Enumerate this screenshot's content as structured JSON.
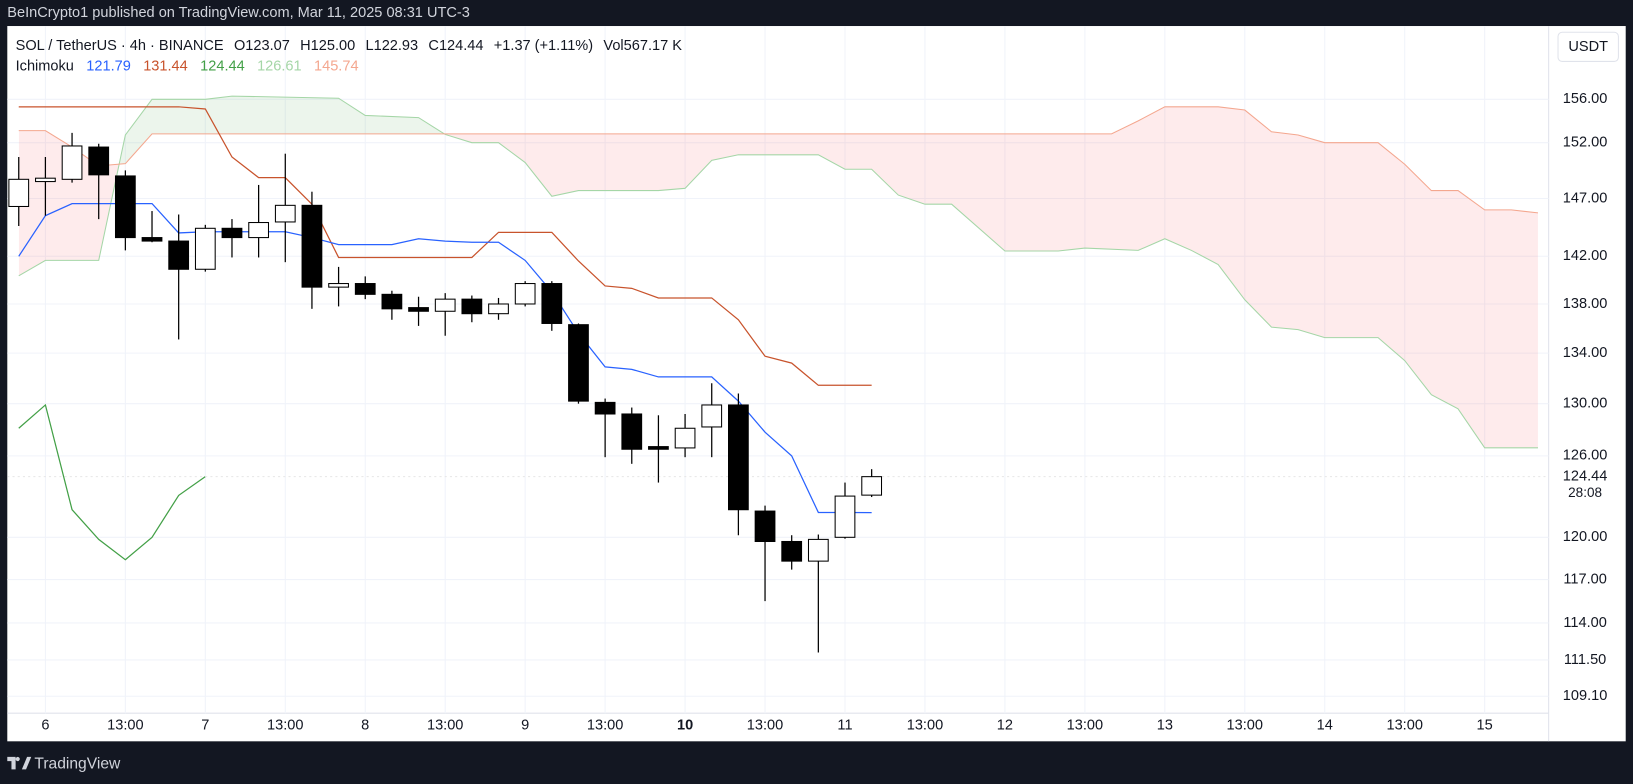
{
  "header": {
    "publisher": "BeInCrypto1 published on TradingView.com, Mar 11, 2025 08:31 UTC-3"
  },
  "footer": {
    "brand": "TradingView"
  },
  "chart_data": {
    "type": "candlestick",
    "symbol": "SOL / TetherUS · 4h · BINANCE",
    "legend": [
      "O123.07",
      "H125.00",
      "L122.93",
      "C124.44",
      "+1.37 (+1.11%)",
      "Vol567.17 K"
    ],
    "currency": "USDT",
    "countdown": "28:08",
    "log_scale": true,
    "grid": true,
    "up_color": "#ffffff",
    "down_color": "#000000",
    "xlim": [
      -0.43,
      57.4
    ],
    "xticks": [
      {
        "value": 1,
        "label": "6"
      },
      {
        "value": 4,
        "label": "13:00"
      },
      {
        "value": 7,
        "label": "7"
      },
      {
        "value": 10,
        "label": "13:00"
      },
      {
        "value": 13,
        "label": "8"
      },
      {
        "value": 16,
        "label": "13:00"
      },
      {
        "value": 19,
        "label": "9"
      },
      {
        "value": 22,
        "label": "13:00"
      },
      {
        "value": 25,
        "label": "10",
        "bold": true
      },
      {
        "value": 28,
        "label": "13:00"
      },
      {
        "value": 31,
        "label": "11"
      },
      {
        "value": 34,
        "label": "13:00"
      },
      {
        "value": 37,
        "label": "12"
      },
      {
        "value": 40,
        "label": "13:00"
      },
      {
        "value": 43,
        "label": "13"
      },
      {
        "value": 46,
        "label": "13:00"
      },
      {
        "value": 49,
        "label": "14"
      },
      {
        "value": 52,
        "label": "13:00"
      },
      {
        "value": 55,
        "label": "15"
      }
    ],
    "ylim": [
      108,
      163
    ],
    "yticks": [
      {
        "value": 156,
        "label": "156.00"
      },
      {
        "value": 152,
        "label": "152.00"
      },
      {
        "value": 147,
        "label": "147.00"
      },
      {
        "value": 142,
        "label": "142.00"
      },
      {
        "value": 138,
        "label": "138.00"
      },
      {
        "value": 134,
        "label": "134.00"
      },
      {
        "value": 130,
        "label": "130.00"
      },
      {
        "value": 126,
        "label": "126.00"
      },
      {
        "value": 120,
        "label": "120.00"
      },
      {
        "value": 117,
        "label": "117.00"
      },
      {
        "value": 114,
        "label": "114.00"
      },
      {
        "value": 111.5,
        "label": "111.50"
      },
      {
        "value": 109.1,
        "label": "109.10"
      }
    ],
    "candles": {
      "open": [
        146.3,
        148.5,
        148.7,
        151.6,
        149.0,
        143.6,
        143.3,
        140.9,
        144.4,
        143.6,
        144.95,
        146.4,
        139.4,
        139.7,
        138.8,
        137.7,
        137.4,
        138.4,
        137.2,
        138.0,
        139.7,
        136.3,
        130.1,
        129.2,
        126.7,
        126.6,
        128.2,
        129.9,
        121.9,
        119.7,
        118.3,
        120.0,
        123.07
      ],
      "high": [
        150.7,
        150.7,
        152.9,
        151.9,
        149.5,
        145.9,
        145.6,
        144.7,
        145.2,
        148.2,
        151.0,
        147.6,
        141.1,
        140.3,
        139.1,
        138.6,
        138.9,
        138.7,
        138.5,
        139.9,
        139.9,
        136.4,
        130.4,
        129.7,
        129.1,
        129.2,
        131.6,
        130.8,
        122.3,
        120.15,
        120.2,
        124.0,
        125.0
      ],
      "low": [
        144.6,
        145.5,
        148.4,
        145.2,
        142.5,
        143.2,
        135.1,
        140.7,
        141.9,
        141.9,
        141.5,
        137.6,
        137.8,
        138.4,
        136.7,
        136.2,
        135.4,
        136.5,
        136.7,
        137.8,
        135.8,
        130.0,
        125.9,
        125.4,
        124.0,
        125.9,
        125.9,
        120.15,
        115.5,
        117.7,
        112.0,
        119.9,
        122.93
      ],
      "close": [
        148.7,
        148.8,
        151.7,
        149.1,
        143.6,
        143.3,
        140.9,
        144.4,
        143.6,
        144.9,
        146.4,
        139.4,
        139.7,
        138.8,
        137.6,
        137.4,
        138.4,
        137.2,
        138.0,
        139.7,
        136.4,
        130.2,
        129.2,
        126.5,
        126.5,
        128.1,
        129.9,
        122.0,
        119.7,
        118.3,
        119.85,
        123.0,
        124.44
      ]
    },
    "ichimoku": {
      "name": "Ichimoku",
      "conversion": {
        "color": "#2962ff",
        "values": [
          142.0,
          145.5,
          146.55,
          146.55,
          146.55,
          146.55,
          144.0,
          144.1,
          144.1,
          144.1,
          144.1,
          143.6,
          143.0,
          143.0,
          143.0,
          143.5,
          143.3,
          143.2,
          143.2,
          141.65,
          139.0,
          135.6,
          132.9,
          132.7,
          132.1,
          132.1,
          132.1,
          130.2,
          127.8,
          126.0,
          121.8,
          121.8,
          121.79
        ]
      },
      "base": {
        "color": "#c8532c",
        "values": [
          155.3,
          155.3,
          155.3,
          155.3,
          155.3,
          155.3,
          155.3,
          155.1,
          150.7,
          148.85,
          148.85,
          146.5,
          141.9,
          141.9,
          141.9,
          141.9,
          141.9,
          141.9,
          144.05,
          144.05,
          144.05,
          141.6,
          139.5,
          139.3,
          138.5,
          138.5,
          138.5,
          136.7,
          133.75,
          133.2,
          131.44,
          131.44,
          131.44
        ]
      },
      "lagging": {
        "color": "#43a047",
        "values": [
          128.1,
          129.9,
          122.0,
          119.85,
          118.4,
          120.0,
          123.05,
          124.44
        ]
      },
      "span_a": {
        "color": "#a5d6a7",
        "fill": "rgba(67,160,71,0.10)",
        "x": [
          0,
          1,
          3,
          4,
          5,
          7,
          8,
          12,
          13,
          15,
          16,
          17,
          18,
          19,
          20,
          21,
          24,
          25,
          26,
          27,
          30,
          31,
          32,
          33,
          34,
          35,
          37,
          39,
          40,
          42,
          43,
          44,
          45,
          46,
          47,
          48,
          49,
          51,
          52,
          53,
          54,
          55,
          57
        ],
        "values": [
          140.35,
          141.65,
          141.65,
          152.7,
          156.0,
          156.0,
          156.3,
          156.1,
          154.5,
          154.3,
          152.75,
          152.0,
          152.0,
          150.2,
          147.2,
          147.7,
          147.7,
          147.9,
          150.4,
          150.9,
          150.9,
          149.6,
          149.6,
          147.3,
          146.5,
          146.5,
          142.45,
          142.45,
          142.7,
          142.5,
          143.5,
          142.5,
          141.3,
          138.35,
          136.1,
          135.9,
          135.25,
          135.25,
          133.4,
          130.7,
          129.6,
          126.61,
          126.61
        ]
      },
      "span_b": {
        "color": "#f4a78f",
        "fill": "rgba(242,54,69,0.10)",
        "x": [
          0,
          1,
          2,
          3,
          4,
          5,
          41,
          42,
          43,
          45,
          46,
          47,
          48,
          49,
          51,
          52,
          53,
          54,
          55,
          56,
          57
        ],
        "values": [
          153.1,
          153.1,
          151.6,
          149.9,
          150.1,
          152.8,
          152.8,
          154.0,
          155.3,
          155.3,
          155.0,
          153.0,
          152.7,
          152.0,
          152.0,
          150.05,
          147.7,
          147.7,
          146.0,
          146.0,
          145.74
        ]
      }
    }
  }
}
